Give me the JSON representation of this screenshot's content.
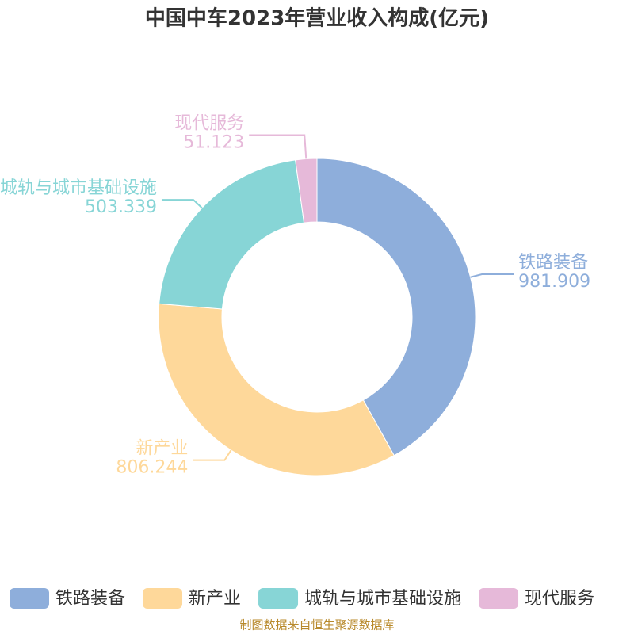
{
  "chart_data": {
    "type": "donut",
    "title": "中国中车2023年营业收入构成(亿元)",
    "categories": [
      "铁路装备",
      "新产业",
      "城轨与城市基础设施",
      "现代服务"
    ],
    "values": [
      981.909,
      806.244,
      503.339,
      51.123
    ],
    "colors": [
      "#8eaedb",
      "#fed89a",
      "#87d5d6",
      "#e6b9d9"
    ],
    "legend": "bottom",
    "source": "制图数据来自恒生聚源数据库"
  }
}
